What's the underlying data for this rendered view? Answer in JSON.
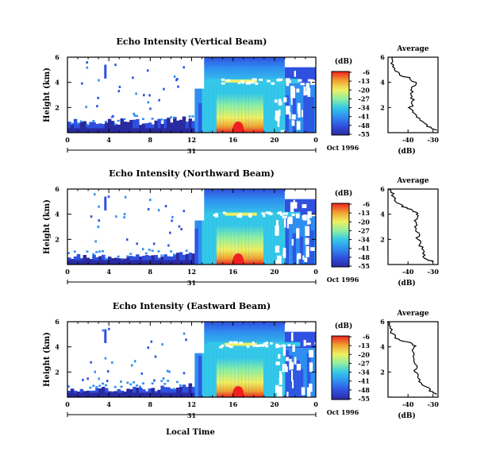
{
  "page": {
    "xlabel": "Local Time",
    "date_label": "Oct 1996",
    "day_label": "31",
    "cbar_unit": "(dB)",
    "avg_title": "Average",
    "avg_xlabel": "(dB)",
    "ylabel": "Height (km)"
  },
  "colors": {
    "scale": [
      "#2a2aa0",
      "#3050e0",
      "#2f8ff0",
      "#34c8e8",
      "#8ff0a0",
      "#f0f060",
      "#f0a030",
      "#f02020"
    ],
    "line": "#000000"
  },
  "chart_data": [
    {
      "type": "heatmap",
      "title": "Echo Intensity (Vertical Beam)",
      "ylabel": "Height (km)",
      "xlabel": "",
      "x_ticks": [
        "0",
        "4",
        "8",
        "12",
        "16",
        "20",
        "0"
      ],
      "y_ticks": [
        "2",
        "4",
        "6"
      ],
      "xlim": [
        0,
        24
      ],
      "ylim": [
        0,
        6
      ],
      "colorbar": {
        "unit": "(dB)",
        "ticks": [
          "-6",
          "-13",
          "-20",
          "-27",
          "-34",
          "-41",
          "-48",
          "-55"
        ]
      },
      "features": {
        "melting_layer_km": 4.1,
        "strong_echo_hours": [
          13,
          21
        ],
        "peak_hour": 16.5,
        "low_level_echo_top_km": 1.1
      },
      "average_profile": {
        "title": "Average",
        "xlabel": "(dB)",
        "x_ticks": [
          "-40",
          "-30"
        ],
        "y_ticks": [
          "2",
          "4",
          "6"
        ],
        "xlim": [
          -48,
          -28
        ],
        "height_km": [
          0.2,
          0.5,
          1.0,
          1.5,
          2.0,
          2.5,
          3.0,
          3.5,
          4.0,
          4.3,
          4.6,
          5.0,
          5.5,
          6.0
        ],
        "db": [
          -29,
          -32,
          -35,
          -37,
          -39,
          -38,
          -39,
          -38,
          -37,
          -39,
          -43,
          -45,
          -46,
          -47
        ]
      }
    },
    {
      "type": "heatmap",
      "title": "Echo Intensity (Northward Beam)",
      "ylabel": "Height (km)",
      "xlabel": "",
      "x_ticks": [
        "0",
        "4",
        "8",
        "12",
        "16",
        "20",
        "0"
      ],
      "y_ticks": [
        "2",
        "4",
        "6"
      ],
      "xlim": [
        0,
        24
      ],
      "ylim": [
        0,
        6
      ],
      "colorbar": {
        "unit": "(dB)",
        "ticks": [
          "-6",
          "-13",
          "-20",
          "-27",
          "-34",
          "-41",
          "-48",
          "-55"
        ]
      },
      "features": {
        "melting_layer_km": 4.0,
        "strong_echo_hours": [
          13,
          21
        ],
        "peak_hour": 16.5,
        "low_level_echo_top_km": 0.8
      },
      "average_profile": {
        "title": "Average",
        "xlabel": "(dB)",
        "x_ticks": [
          "-40",
          "-30"
        ],
        "y_ticks": [
          "2",
          "4",
          "6"
        ],
        "xlim": [
          -48,
          -28
        ],
        "height_km": [
          0.2,
          0.5,
          1.0,
          1.5,
          2.0,
          2.5,
          3.0,
          3.5,
          4.0,
          4.3,
          4.6,
          5.0,
          5.5,
          6.0
        ],
        "db": [
          -30,
          -33,
          -34,
          -35,
          -36,
          -36,
          -37,
          -37,
          -36,
          -38,
          -42,
          -45,
          -46,
          -47
        ]
      }
    },
    {
      "type": "heatmap",
      "title": "Echo Intensity (Eastward Beam)",
      "ylabel": "Height (km)",
      "xlabel": "Local Time",
      "x_ticks": [
        "0",
        "4",
        "8",
        "12",
        "16",
        "20",
        "0"
      ],
      "y_ticks": [
        "2",
        "4",
        "6"
      ],
      "xlim": [
        0,
        24
      ],
      "ylim": [
        0,
        6
      ],
      "colorbar": {
        "unit": "(dB)",
        "ticks": [
          "-6",
          "-13",
          "-20",
          "-27",
          "-34",
          "-41",
          "-48",
          "-55"
        ]
      },
      "features": {
        "melting_layer_km": 4.2,
        "strong_echo_hours": [
          13,
          21
        ],
        "peak_hour": 16.5,
        "low_level_echo_top_km": 0.8
      },
      "average_profile": {
        "title": "Average",
        "xlabel": "(dB)",
        "x_ticks": [
          "-40",
          "-30"
        ],
        "y_ticks": [
          "2",
          "4",
          "6"
        ],
        "xlim": [
          -48,
          -28
        ],
        "height_km": [
          0.2,
          0.5,
          1.0,
          1.5,
          2.0,
          2.5,
          3.0,
          3.5,
          4.0,
          4.3,
          4.6,
          5.0,
          5.5,
          6.0
        ],
        "db": [
          -29,
          -31,
          -34,
          -36,
          -37,
          -37,
          -38,
          -38,
          -37,
          -39,
          -44,
          -46,
          -47,
          -48
        ]
      }
    }
  ]
}
